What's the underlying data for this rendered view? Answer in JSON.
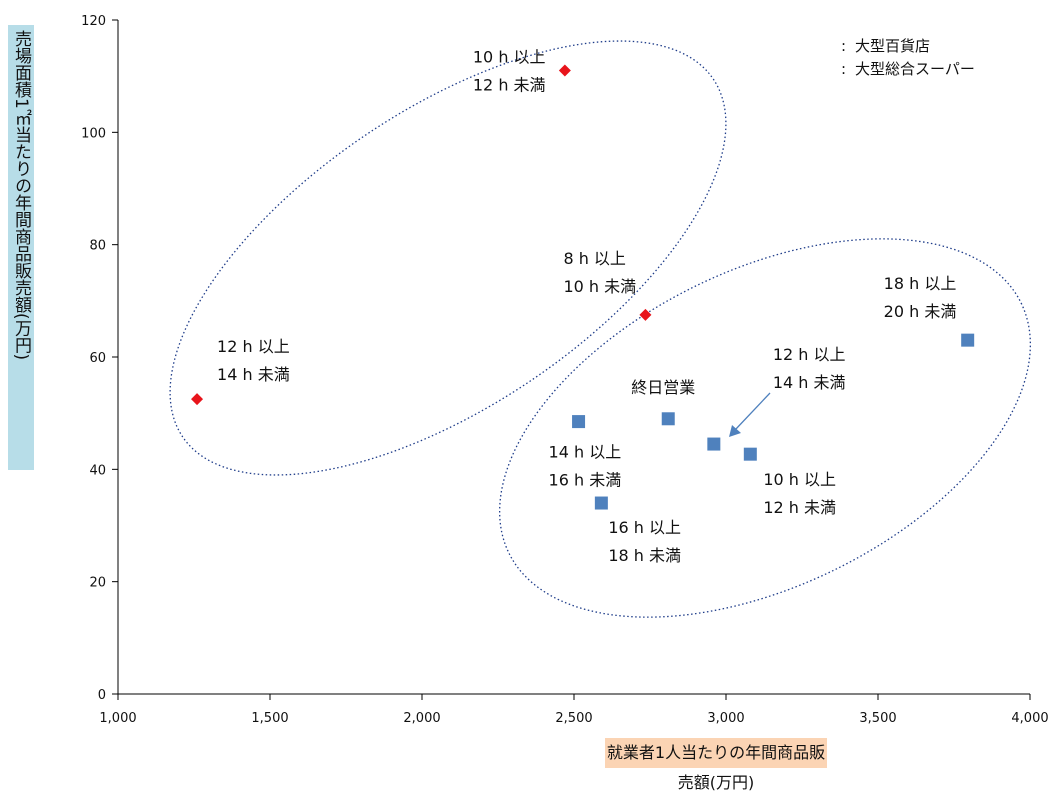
{
  "chart_data": {
    "type": "scatter",
    "title": "",
    "xlabel": "就業者1人当たりの年間商品販売額(万円)",
    "ylabel": "売場面積1㎡当たりの年間商品販売額(万円)",
    "xlim": [
      1000,
      4000
    ],
    "ylim": [
      0,
      120
    ],
    "x_ticks": [
      "1,000",
      "1,500",
      "2,000",
      "2,500",
      "3,000",
      "3,500",
      "4,000"
    ],
    "x_tick_values": [
      1000,
      1500,
      2000,
      2500,
      3000,
      3500,
      4000
    ],
    "y_ticks": [
      "0",
      "20",
      "40",
      "60",
      "80",
      "100",
      "120"
    ],
    "y_tick_values": [
      0,
      20,
      40,
      60,
      80,
      100,
      120
    ],
    "legend_position": "top-right",
    "series": [
      {
        "name": "大型百貨店",
        "color": "#e8141b",
        "marker": "diamond",
        "points": [
          {
            "x": 1260,
            "y": 52.5,
            "label": [
              "12 h 以上",
              "14 h 未満"
            ]
          },
          {
            "x": 2470,
            "y": 111,
            "label": [
              "10 h 以上",
              "12 h 未満"
            ]
          },
          {
            "x": 2735,
            "y": 67.5,
            "label": [
              "8 h 以上",
              "10 h 未満"
            ]
          }
        ]
      },
      {
        "name": "大型総合スーパー",
        "color": "#4f81bd",
        "marker": "square",
        "points": [
          {
            "x": 2515,
            "y": 48.5,
            "label": [
              "14 h 以上",
              "16 h 未満"
            ]
          },
          {
            "x": 2590,
            "y": 34,
            "label": [
              "16 h 以上",
              "18 h 未満"
            ]
          },
          {
            "x": 2810,
            "y": 49,
            "label": [
              "終日営業"
            ]
          },
          {
            "x": 2960,
            "y": 44.5,
            "label": [
              "12 h 以上",
              "14 h 未満"
            ]
          },
          {
            "x": 3080,
            "y": 42.7,
            "label": [
              "10 h 以上",
              "12 h 未満"
            ]
          },
          {
            "x": 3795,
            "y": 63,
            "label": [
              "18 h 以上",
              "20 h 未満"
            ]
          }
        ]
      }
    ]
  }
}
